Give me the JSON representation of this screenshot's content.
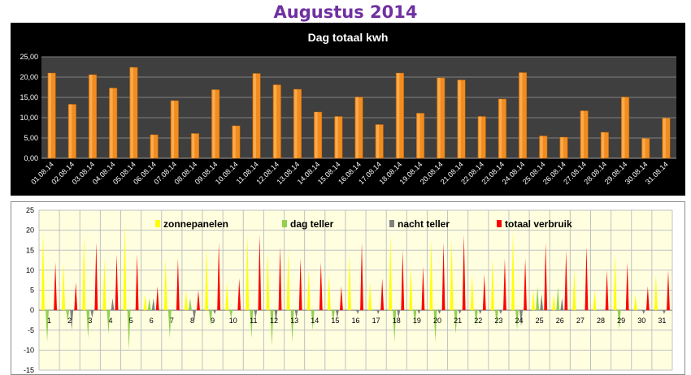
{
  "page_title": "Augustus 2014",
  "chart_data": [
    {
      "type": "bar",
      "title": "Dag totaal kwh",
      "categories": [
        "01.08.14",
        "02.08.14",
        "03.08.14",
        "04.08.14",
        "05.08.14",
        "06.08.14",
        "07.08.14",
        "08.08.14",
        "09.08.14",
        "10.08.14",
        "11.08.14",
        "12.08.14",
        "13.08.14",
        "14.08.14",
        "15.08.14",
        "16.08.14",
        "17.08.14",
        "18.08.14",
        "19.08.14",
        "20.08.14",
        "21.08.14",
        "22.08.14",
        "23.08.14",
        "24.08.14",
        "25.08.14",
        "26.08.14",
        "27.08.14",
        "28.08.14",
        "29.08.14",
        "30.08.14",
        "31.08.14"
      ],
      "values": [
        21.0,
        13.3,
        20.6,
        17.3,
        22.4,
        5.8,
        14.2,
        6.1,
        16.9,
        8.0,
        20.9,
        18.1,
        17.0,
        11.4,
        10.3,
        15.1,
        8.3,
        21.0,
        11.1,
        19.8,
        19.3,
        10.3,
        14.6,
        21.1,
        5.5,
        5.2,
        11.7,
        6.4,
        15.1,
        4.9,
        9.9
      ],
      "ytick_labels": [
        "0,00",
        "5,00",
        "10,00",
        "15,00",
        "20,00",
        "25,00"
      ],
      "ylim": [
        0,
        25
      ],
      "grid": true,
      "colors": {
        "background": "#000000",
        "plot": "#3f3f3f",
        "bar": "#f28c1e",
        "text": "#ffffff"
      }
    },
    {
      "type": "bar",
      "categories": [
        "1",
        "2",
        "3",
        "4",
        "5",
        "6",
        "7",
        "8",
        "9",
        "10",
        "11",
        "12",
        "13",
        "14",
        "15",
        "16",
        "17",
        "18",
        "19",
        "20",
        "21",
        "22",
        "23",
        "24",
        "25",
        "26",
        "27",
        "28",
        "29",
        "30",
        "31"
      ],
      "ytick_labels": [
        "25",
        "20",
        "15",
        "10",
        "5",
        "0",
        "-5",
        "-10",
        "-15"
      ],
      "ylim": [
        -15,
        25
      ],
      "legend_position": "top",
      "grid": true,
      "series": [
        {
          "name": "zonnepanelen",
          "color": "#ffff00",
          "values": [
            20,
            12,
            19,
            13,
            22,
            4,
            13,
            5,
            16,
            7,
            19,
            15,
            15,
            10,
            9,
            14,
            7,
            19,
            11,
            18,
            18,
            9,
            13,
            20,
            5,
            4,
            10,
            5,
            14,
            4,
            9
          ]
        },
        {
          "name": "dag teller",
          "color": "#92d050",
          "values": [
            -8,
            -3,
            -7,
            -6,
            -10,
            3,
            -7,
            3,
            -4,
            -2,
            -7,
            -9,
            -8,
            -5,
            -3,
            0,
            0,
            -8,
            -4,
            -8,
            -6,
            -4,
            -4,
            -5,
            6,
            6,
            0,
            0,
            -5,
            0,
            0
          ]
        },
        {
          "name": "nacht teller",
          "color": "#808080",
          "values": [
            0,
            -5,
            -2,
            3,
            0,
            3,
            0,
            -3,
            -1,
            0,
            -2,
            -3,
            -2,
            0,
            -2,
            -1,
            -1,
            -2,
            -1,
            -1,
            -1,
            -1,
            -1,
            -4,
            4,
            3,
            0,
            0,
            0,
            -1,
            -1
          ]
        },
        {
          "name": "totaal verbruik",
          "color": "#ff0000",
          "values": [
            12,
            7,
            17,
            14,
            14,
            6,
            13,
            5,
            17,
            8,
            19,
            16,
            13,
            12,
            6,
            17,
            8,
            15,
            11,
            17,
            19,
            9,
            13,
            13,
            17,
            15,
            16,
            10,
            12,
            6,
            10
          ]
        }
      ],
      "colors": {
        "plot": "#ffffe0",
        "grid": "#c0c0c0",
        "text": "#000000"
      }
    }
  ]
}
